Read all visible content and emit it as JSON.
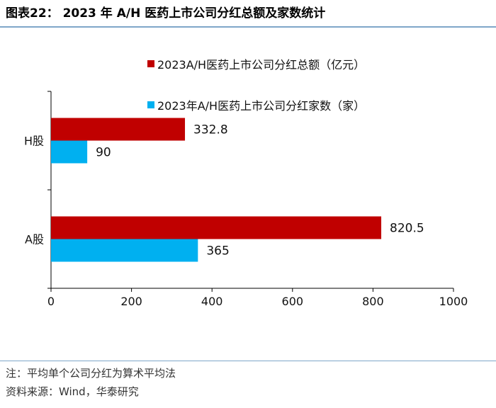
{
  "title": "图表22： 2023 年 A/H 医药上市公司分红总额及家数统计",
  "notes": {
    "line1": "注：平均单个公司分红为算术平均法",
    "line2": "资料来源：Wind，华泰研究"
  },
  "colors": {
    "series1": "#c00000",
    "series2": "#00b0f0",
    "axis": "#000000",
    "rule": "#7fa6c9"
  },
  "chart_data": {
    "type": "bar",
    "orientation": "horizontal",
    "categories": [
      "H股",
      "A股"
    ],
    "series": [
      {
        "name": "2023A/H医药上市公司分红总额（亿元）",
        "values": [
          332.8,
          820.5
        ]
      },
      {
        "name": "2023年A/H医药上市公司分红家数（家）",
        "values": [
          90,
          365
        ]
      }
    ],
    "data_labels": [
      [
        "332.8",
        "820.5"
      ],
      [
        "90",
        "365"
      ]
    ],
    "xlim": [
      0,
      1000
    ],
    "xticks": [
      0,
      200,
      400,
      600,
      800,
      1000
    ],
    "grid": false,
    "legend_position": "top"
  }
}
